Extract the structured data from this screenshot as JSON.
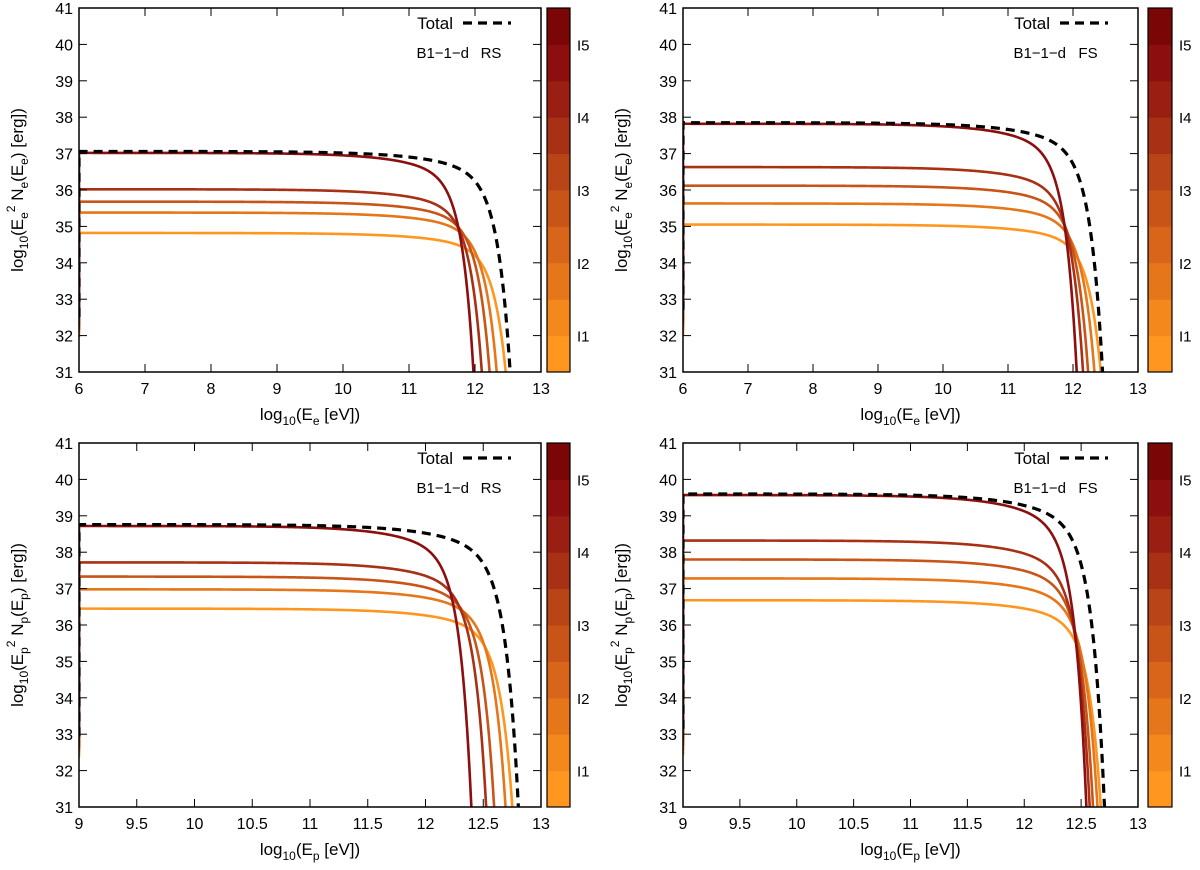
{
  "chart_data": [
    {
      "type": "line",
      "id": "top-left",
      "particle": "e",
      "xlabel": {
        "base": "log",
        "sub1": "10",
        "mid": "(E",
        "sub2": "e",
        "tail": " [eV])"
      },
      "ylabel": {
        "base": "log",
        "sub1": "10",
        "p1": "(E",
        "sub2": "e",
        "sup": "2",
        "p2": " N",
        "sub3": "e",
        "p3": "(E",
        "sub4": "e",
        "tail": ") [erg])"
      },
      "xlim": [
        6,
        13
      ],
      "ylim": [
        31,
        41
      ],
      "xticks": [
        "6",
        "7",
        "8",
        "9",
        "10",
        "11",
        "12",
        "13"
      ],
      "yticks": [
        "31",
        "32",
        "33",
        "34",
        "35",
        "36",
        "37",
        "38",
        "39",
        "40",
        "41"
      ],
      "legend": {
        "label": "Total",
        "style": "dashed",
        "color": "#000000"
      },
      "tag": {
        "model": "B1−1−d",
        "shock": "RS"
      },
      "series": [
        {
          "name": "I1",
          "plateau": 34.82,
          "x_start": 6.0,
          "x_end": 12.52,
          "color": "#ff9620"
        },
        {
          "name": "I2",
          "plateau": 35.38,
          "x_start": 6.0,
          "x_end": 12.38,
          "color": "#e5761a"
        },
        {
          "name": "I3",
          "plateau": 35.68,
          "x_start": 6.0,
          "x_end": 12.27,
          "color": "#c95418"
        },
        {
          "name": "I4",
          "plateau": 36.02,
          "x_start": 6.0,
          "x_end": 12.15,
          "color": "#a83015"
        },
        {
          "name": "I5",
          "plateau": 37.02,
          "x_start": 6.0,
          "x_end": 12.02,
          "color": "#8c0e0e"
        },
        {
          "name": "Total",
          "plateau": 37.06,
          "x_start": 6.0,
          "x_end": 12.58,
          "color": "#000000",
          "dashed": true
        }
      ]
    },
    {
      "type": "line",
      "id": "top-right",
      "particle": "e",
      "xlabel": {
        "base": "log",
        "sub1": "10",
        "mid": "(E",
        "sub2": "e",
        "tail": " [eV])"
      },
      "ylabel": {
        "base": "log",
        "sub1": "10",
        "p1": "(E",
        "sub2": "e",
        "sup": "2",
        "p2": " N",
        "sub3": "e",
        "p3": "(E",
        "sub4": "e",
        "tail": ") [erg])"
      },
      "xlim": [
        6,
        13
      ],
      "ylim": [
        31,
        41
      ],
      "xticks": [
        "6",
        "7",
        "8",
        "9",
        "10",
        "11",
        "12",
        "13"
      ],
      "yticks": [
        "31",
        "32",
        "33",
        "34",
        "35",
        "36",
        "37",
        "38",
        "39",
        "40",
        "41"
      ],
      "legend": {
        "label": "Total",
        "style": "dashed",
        "color": "#000000"
      },
      "tag": {
        "model": "B1−1−d",
        "shock": "FS"
      },
      "series": [
        {
          "name": "I1",
          "plateau": 35.05,
          "x_start": 6.0,
          "x_end": 12.48,
          "color": "#ff9620"
        },
        {
          "name": "I2",
          "plateau": 35.63,
          "x_start": 6.0,
          "x_end": 12.38,
          "color": "#e5761a"
        },
        {
          "name": "I3",
          "plateau": 36.12,
          "x_start": 6.0,
          "x_end": 12.28,
          "color": "#c95418"
        },
        {
          "name": "I4",
          "plateau": 36.63,
          "x_start": 6.0,
          "x_end": 12.2,
          "color": "#a83015"
        },
        {
          "name": "I5",
          "plateau": 37.82,
          "x_start": 6.0,
          "x_end": 12.1,
          "color": "#8c0e0e"
        },
        {
          "name": "Total",
          "plateau": 37.85,
          "x_start": 6.0,
          "x_end": 12.5,
          "color": "#000000",
          "dashed": true
        }
      ]
    },
    {
      "type": "line",
      "id": "bottom-left",
      "particle": "p",
      "xlabel": {
        "base": "log",
        "sub1": "10",
        "mid": "(E",
        "sub2": "p",
        "tail": " [eV])"
      },
      "ylabel": {
        "base": "log",
        "sub1": "10",
        "p1": "(E",
        "sub2": "p",
        "sup": "2",
        "p2": " N",
        "sub3": "p",
        "p3": "(E",
        "sub4": "p",
        "tail": ") [erg])"
      },
      "xlim": [
        9,
        13
      ],
      "ylim": [
        31,
        41
      ],
      "xticks": [
        "9",
        "9.5",
        "10",
        "10.5",
        "11",
        "11.5",
        "12",
        "12.5",
        "13"
      ],
      "yticks": [
        "31",
        "32",
        "33",
        "34",
        "35",
        "36",
        "37",
        "38",
        "39",
        "40",
        "41"
      ],
      "legend": {
        "label": "Total",
        "style": "dashed",
        "color": "#000000"
      },
      "tag": {
        "model": "B1−1−d",
        "shock": "RS"
      },
      "series": [
        {
          "name": "I1",
          "plateau": 36.45,
          "x_start": 9.0,
          "x_end": 12.78,
          "color": "#ff9620"
        },
        {
          "name": "I2",
          "plateau": 36.98,
          "x_start": 9.0,
          "x_end": 12.72,
          "color": "#e5761a"
        },
        {
          "name": "I3",
          "plateau": 37.33,
          "x_start": 9.0,
          "x_end": 12.62,
          "color": "#c95418"
        },
        {
          "name": "I4",
          "plateau": 37.72,
          "x_start": 9.0,
          "x_end": 12.55,
          "color": "#a83015"
        },
        {
          "name": "I5",
          "plateau": 38.72,
          "x_start": 9.0,
          "x_end": 12.42,
          "color": "#8c0e0e"
        },
        {
          "name": "Total",
          "plateau": 38.76,
          "x_start": 9.0,
          "x_end": 12.83,
          "color": "#000000",
          "dashed": true
        }
      ]
    },
    {
      "type": "line",
      "id": "bottom-right",
      "particle": "p",
      "xlabel": {
        "base": "log",
        "sub1": "10",
        "mid": "(E",
        "sub2": "p",
        "tail": " [eV])"
      },
      "ylabel": {
        "base": "log",
        "sub1": "10",
        "p1": "(E",
        "sub2": "p",
        "sup": "2",
        "p2": " N",
        "sub3": "p",
        "p3": "(E",
        "sub4": "p",
        "tail": ") [erg])"
      },
      "xlim": [
        9,
        13
      ],
      "ylim": [
        31,
        41
      ],
      "xticks": [
        "9",
        "9.5",
        "10",
        "10.5",
        "11",
        "11.5",
        "12",
        "12.5",
        "13"
      ],
      "yticks": [
        "31",
        "32",
        "33",
        "34",
        "35",
        "36",
        "37",
        "38",
        "39",
        "40",
        "41"
      ],
      "legend": {
        "label": "Total",
        "style": "dashed",
        "color": "#000000"
      },
      "tag": {
        "model": "B1−1−d",
        "shock": "FS"
      },
      "series": [
        {
          "name": "I1",
          "plateau": 36.68,
          "x_start": 9.0,
          "x_end": 12.7,
          "color": "#ff9620"
        },
        {
          "name": "I2",
          "plateau": 37.28,
          "x_start": 9.0,
          "x_end": 12.67,
          "color": "#e5761a"
        },
        {
          "name": "I3",
          "plateau": 37.8,
          "x_start": 9.0,
          "x_end": 12.63,
          "color": "#c95418"
        },
        {
          "name": "I4",
          "plateau": 38.32,
          "x_start": 9.0,
          "x_end": 12.6,
          "color": "#a83015"
        },
        {
          "name": "I5",
          "plateau": 39.57,
          "x_start": 9.0,
          "x_end": 12.57,
          "color": "#8c0e0e"
        },
        {
          "name": "Total",
          "plateau": 39.6,
          "x_start": 9.0,
          "x_end": 12.73,
          "color": "#000000",
          "dashed": true
        }
      ]
    }
  ],
  "colorbar": {
    "labels": [
      "I1",
      "I2",
      "I3",
      "I4",
      "I5"
    ],
    "colors": [
      "#ff9620",
      "#f5881c",
      "#e5761a",
      "#d8651a",
      "#c95418",
      "#b84417",
      "#a83015",
      "#9a1f12",
      "#8c0e0e",
      "#7a0606"
    ]
  }
}
